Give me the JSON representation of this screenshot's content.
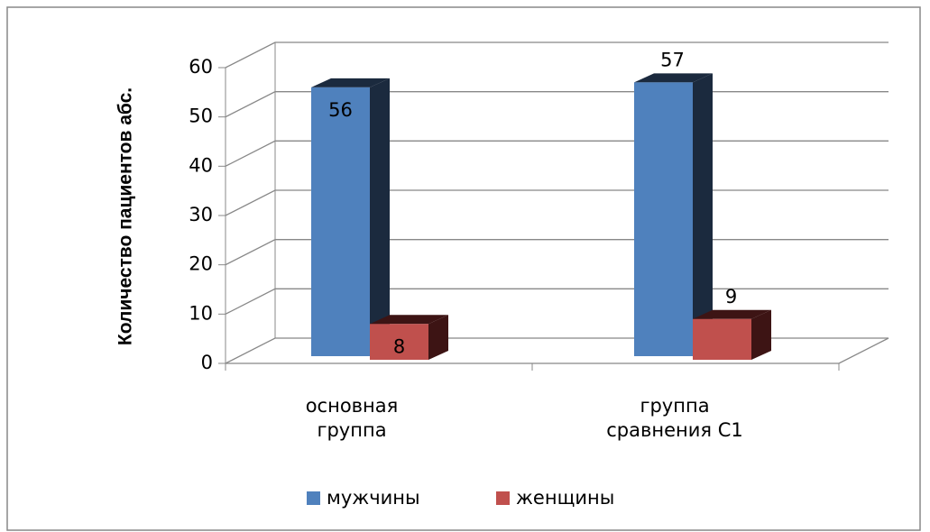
{
  "chart_data": {
    "type": "bar3d",
    "y_label": "Количество пациентов абс.",
    "categories": [
      "основная группа",
      "группа сравнения С1"
    ],
    "series": [
      {
        "name": "мужчины",
        "color": "#4f81bd",
        "values": [
          56,
          57
        ]
      },
      {
        "name": "женщины",
        "color": "#c0504d",
        "values": [
          8,
          9
        ]
      }
    ],
    "ylim": [
      0,
      60
    ],
    "yticks": [
      0,
      10,
      20,
      30,
      40,
      50,
      60
    ],
    "grid": true,
    "legend": "bottom"
  }
}
